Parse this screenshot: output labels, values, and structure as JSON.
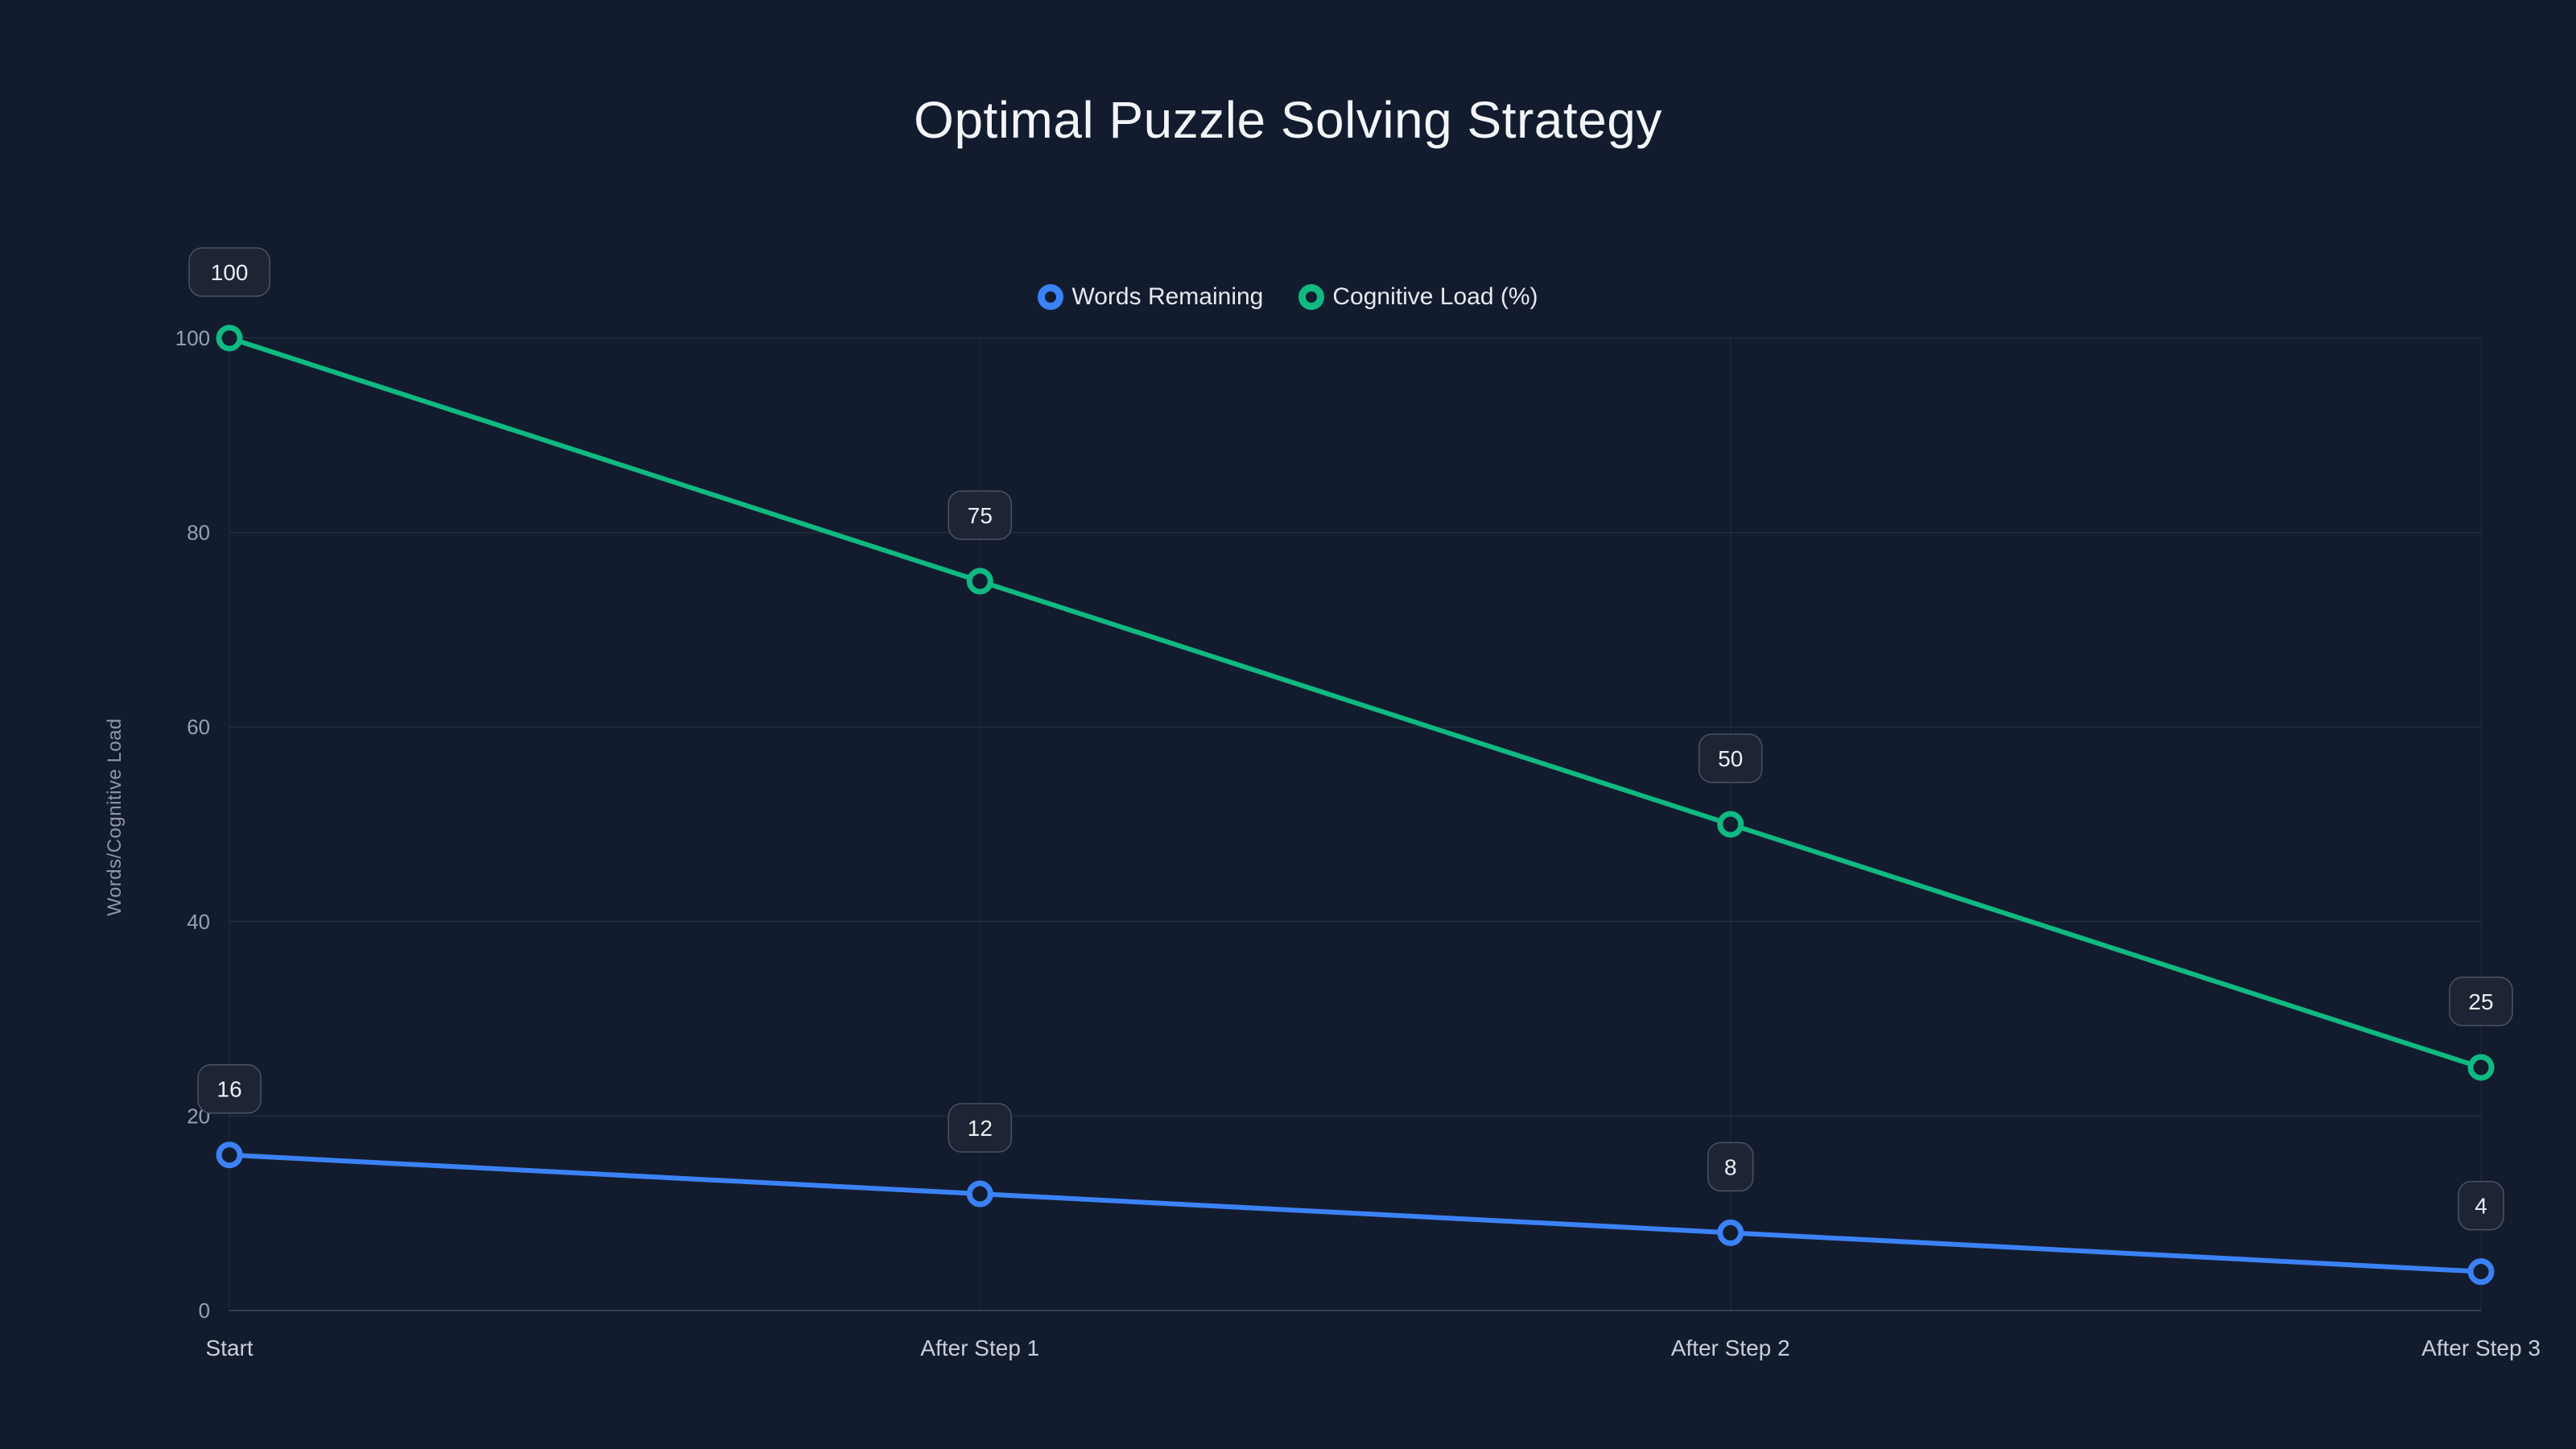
{
  "title": "Optimal Puzzle Solving Strategy",
  "colors": {
    "background": "#131c2e",
    "grid": "rgba(255,255,255,0.07)",
    "axis_line": "#333e52",
    "tick_label": "#98a1b3",
    "category_label": "#c8cfda",
    "label_box_fill": "#1d2534",
    "label_box_border": "#4a5264",
    "label_text": "#eceff3"
  },
  "chart_data": {
    "type": "line",
    "title": "Optimal Puzzle Solving Strategy",
    "categories": [
      "Start",
      "After Step 1",
      "After Step 2",
      "After Step 3"
    ],
    "series": [
      {
        "name": "Words Remaining",
        "values": [
          16,
          12,
          8,
          4
        ],
        "color": "#3b82f6"
      },
      {
        "name": "Cognitive Load (%)",
        "values": [
          100,
          75,
          50,
          25
        ],
        "color": "#10b981"
      }
    ],
    "xlabel": "",
    "ylabel": "Words/Cognitive Load",
    "yticks": [
      0,
      20,
      40,
      60,
      80,
      100
    ],
    "ylim": [
      0,
      100
    ],
    "grid": true,
    "legend_position": "top-center",
    "point_labels": true
  }
}
